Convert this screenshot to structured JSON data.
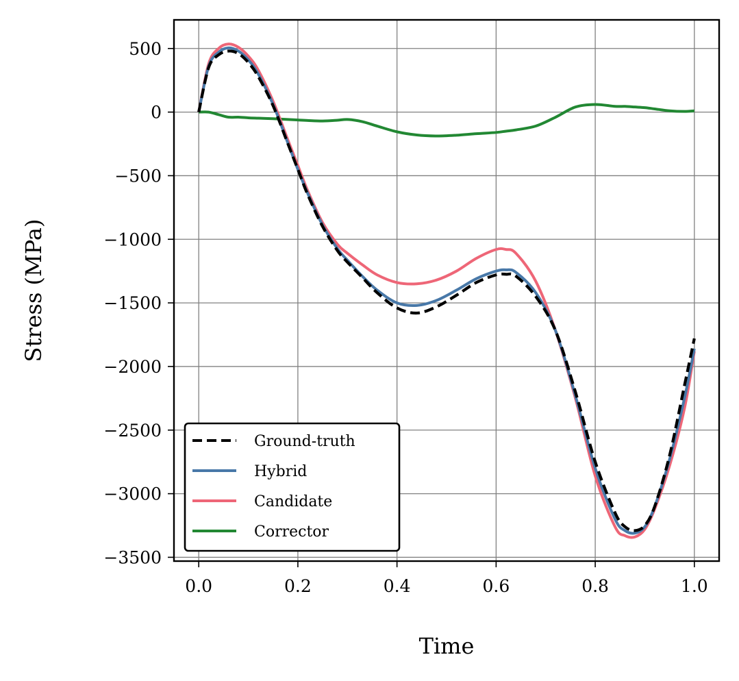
{
  "chart_data": {
    "type": "line",
    "title": "",
    "xlabel": "Time",
    "ylabel": "Stress (MPa)",
    "xlim": [
      -0.05,
      1.05
    ],
    "ylim": [
      -3530,
      725
    ],
    "xticks": [
      0.0,
      0.2,
      0.4,
      0.6,
      0.8,
      1.0
    ],
    "xtick_labels": [
      "0.0",
      "0.2",
      "0.4",
      "0.6",
      "0.8",
      "1.0"
    ],
    "yticks": [
      500,
      0,
      -500,
      -1000,
      -1500,
      -2000,
      -2500,
      -3000,
      -3500
    ],
    "ytick_labels": [
      "500",
      "0",
      "−500",
      "−1000",
      "−1500",
      "−2000",
      "−2500",
      "−3000",
      "−3500"
    ],
    "grid": true,
    "legend_position": "lower-left",
    "x": [
      0.0,
      0.02,
      0.04,
      0.06,
      0.08,
      0.1,
      0.12,
      0.15,
      0.18,
      0.2,
      0.22,
      0.25,
      0.28,
      0.3,
      0.33,
      0.36,
      0.4,
      0.44,
      0.48,
      0.52,
      0.56,
      0.6,
      0.62,
      0.64,
      0.68,
      0.72,
      0.76,
      0.8,
      0.84,
      0.86,
      0.88,
      0.9,
      0.92,
      0.95,
      0.98,
      1.0
    ],
    "series": [
      {
        "name": "Ground-truth",
        "color": "#000000",
        "style": "dashed",
        "values": [
          0,
          350,
          450,
          480,
          460,
          390,
          280,
          50,
          -250,
          -450,
          -650,
          -900,
          -1090,
          -1180,
          -1300,
          -1420,
          -1540,
          -1580,
          -1530,
          -1440,
          -1340,
          -1280,
          -1275,
          -1290,
          -1450,
          -1720,
          -2200,
          -2750,
          -3150,
          -3260,
          -3290,
          -3250,
          -3100,
          -2700,
          -2150,
          -1780
        ]
      },
      {
        "name": "Hybrid",
        "color": "#4878a8",
        "style": "solid",
        "values": [
          0,
          360,
          470,
          505,
          480,
          410,
          300,
          60,
          -245,
          -450,
          -640,
          -890,
          -1075,
          -1165,
          -1290,
          -1400,
          -1500,
          -1520,
          -1480,
          -1400,
          -1310,
          -1250,
          -1240,
          -1260,
          -1420,
          -1720,
          -2230,
          -2800,
          -3200,
          -3290,
          -3310,
          -3260,
          -3100,
          -2730,
          -2250,
          -1860
        ]
      },
      {
        "name": "Candidate",
        "color": "#ee6677",
        "style": "solid",
        "values": [
          0,
          380,
          500,
          535,
          510,
          440,
          330,
          85,
          -220,
          -420,
          -620,
          -870,
          -1040,
          -1110,
          -1200,
          -1280,
          -1340,
          -1350,
          -1320,
          -1250,
          -1150,
          -1080,
          -1080,
          -1110,
          -1330,
          -1720,
          -2250,
          -2860,
          -3260,
          -3330,
          -3340,
          -3280,
          -3120,
          -2780,
          -2330,
          -1880
        ]
      },
      {
        "name": "Corrector",
        "color": "#228833",
        "style": "solid",
        "values": [
          0,
          0,
          -20,
          -40,
          -40,
          -45,
          -48,
          -52,
          -58,
          -62,
          -66,
          -70,
          -64,
          -58,
          -75,
          -110,
          -155,
          -180,
          -188,
          -182,
          -170,
          -160,
          -150,
          -140,
          -110,
          -40,
          40,
          60,
          45,
          45,
          40,
          35,
          25,
          10,
          5,
          10
        ]
      }
    ]
  }
}
